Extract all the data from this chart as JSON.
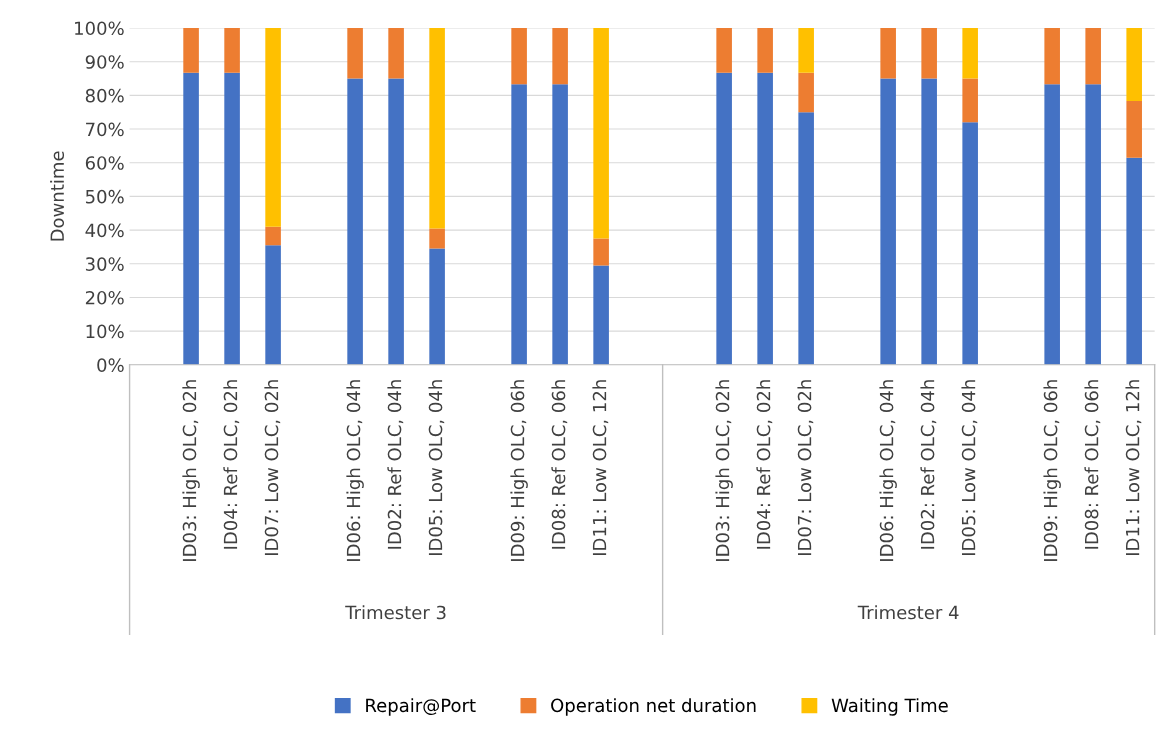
{
  "chart_data": {
    "type": "bar",
    "stacked": true,
    "ylabel": "Downtime",
    "categories": [
      null,
      "ID03: High OLC, 02h",
      "ID04: Ref OLC, 02h",
      "ID07: Low OLC, 02h",
      null,
      "ID06: High OLC, 04h",
      "ID02: Ref OLC, 04h",
      "ID05: Low OLC, 04h",
      null,
      "ID09: High OLC, 06h",
      "ID08: Ref OLC, 06h",
      "ID11: Low OLC, 12h",
      null,
      null,
      "ID03: High OLC, 02h",
      "ID04: Ref OLC, 02h",
      "ID07: Low OLC, 02h",
      null,
      "ID06: High OLC, 04h",
      "ID02: Ref OLC, 04h",
      "ID05: Low OLC, 04h",
      null,
      "ID09: High OLC, 06h",
      "ID08: Ref OLC, 06h",
      "ID11: Low OLC, 12h"
    ],
    "series": [
      {
        "name": "Repair@Port",
        "color": "#4472c4",
        "values": [
          null,
          86.7,
          86.7,
          35.5,
          null,
          85,
          85,
          34.5,
          null,
          83.3,
          83.3,
          29.5,
          null,
          null,
          86.7,
          86.7,
          75,
          null,
          85,
          85,
          72,
          null,
          83.3,
          83.3,
          61.5
        ]
      },
      {
        "name": "Operation net duration",
        "color": "#ed7d31",
        "values": [
          null,
          13.3,
          13.3,
          5.5,
          null,
          15,
          15,
          6,
          null,
          16.7,
          16.7,
          8,
          null,
          null,
          13.3,
          13.3,
          11.7,
          null,
          15,
          15,
          13,
          null,
          16.7,
          16.7,
          16.8
        ]
      },
      {
        "name": "Waiting Time",
        "color": "#ffc000",
        "values": [
          null,
          0,
          0,
          59,
          null,
          0,
          0,
          59.5,
          null,
          0,
          0,
          62.5,
          null,
          null,
          0,
          0,
          13.3,
          null,
          0,
          0,
          15,
          null,
          0,
          0,
          21.7
        ]
      }
    ],
    "ylim": [
      0,
      100
    ],
    "yticks": [
      {
        "value": 0,
        "label": "0%"
      },
      {
        "value": 10,
        "label": "10%"
      },
      {
        "value": 20,
        "label": "20%"
      },
      {
        "value": 30,
        "label": "30%"
      },
      {
        "value": 40,
        "label": "40%"
      },
      {
        "value": 50,
        "label": "50%"
      },
      {
        "value": 60,
        "label": "60%"
      },
      {
        "value": 70,
        "label": "70%"
      },
      {
        "value": 80,
        "label": "80%"
      },
      {
        "value": 90,
        "label": "90%"
      },
      {
        "value": 100,
        "label": "100%"
      }
    ],
    "grid": "y",
    "legend": "bottom",
    "annotations": [
      "Trimester 3",
      "Trimester 4"
    ]
  }
}
